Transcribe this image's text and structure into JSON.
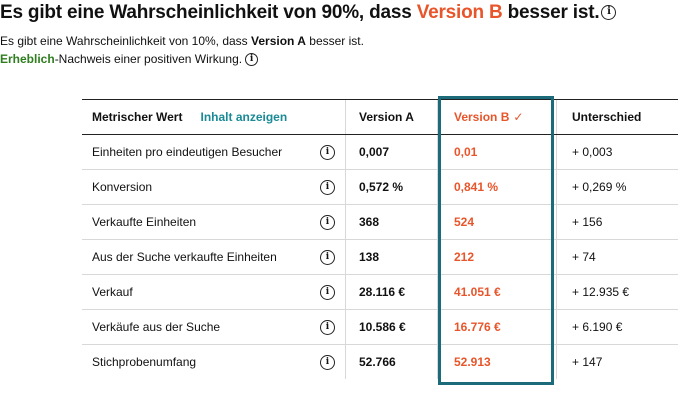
{
  "headline": {
    "prefix": "Es gibt eine Wahrscheinlichkeit von 90%, dass ",
    "accent": "Version B",
    "suffix": " besser ist."
  },
  "sub1": {
    "prefix": "Es gibt eine Wahrscheinlichkeit von 10%, dass ",
    "bold": "Version A",
    "suffix": " besser ist."
  },
  "sub2": {
    "green": "Erheblich",
    "suffix": "-Nachweis einer positiven Wirkung."
  },
  "table": {
    "header": {
      "metric": "Metrischer Wert",
      "show_content": "Inhalt anzeigen",
      "version_a": "Version A",
      "version_b": "Version B",
      "check": "✓",
      "difference": "Unterschied"
    },
    "rows": [
      {
        "metric": "Einheiten pro eindeutigen Besucher",
        "a": "0,007",
        "b": "0,01",
        "diff": "+ 0,003"
      },
      {
        "metric": "Konversion",
        "a": "0,572 %",
        "b": "0,841 %",
        "diff": "+ 0,269 %"
      },
      {
        "metric": "Verkaufte Einheiten",
        "a": "368",
        "b": "524",
        "diff": "+ 156"
      },
      {
        "metric": "Aus der Suche verkaufte Einheiten",
        "a": "138",
        "b": "212",
        "diff": "+ 74"
      },
      {
        "metric": "Verkauf",
        "a": "28.116 €",
        "b": "41.051 €",
        "diff": "+ 12.935 €"
      },
      {
        "metric": "Verkäufe aus der Suche",
        "a": "10.586 €",
        "b": "16.776 €",
        "diff": "+ 6.190 €"
      },
      {
        "metric": "Stichprobenumfang",
        "a": "52.766",
        "b": "52.913",
        "diff": "+ 147"
      }
    ]
  },
  "colors": {
    "accent": "#e8552a",
    "significant": "#2e7d1e",
    "link": "#1a8a96",
    "highlight_border": "#1b6b7a"
  },
  "icons": {
    "info": "info-circle-icon",
    "check": "checkmark-icon"
  }
}
